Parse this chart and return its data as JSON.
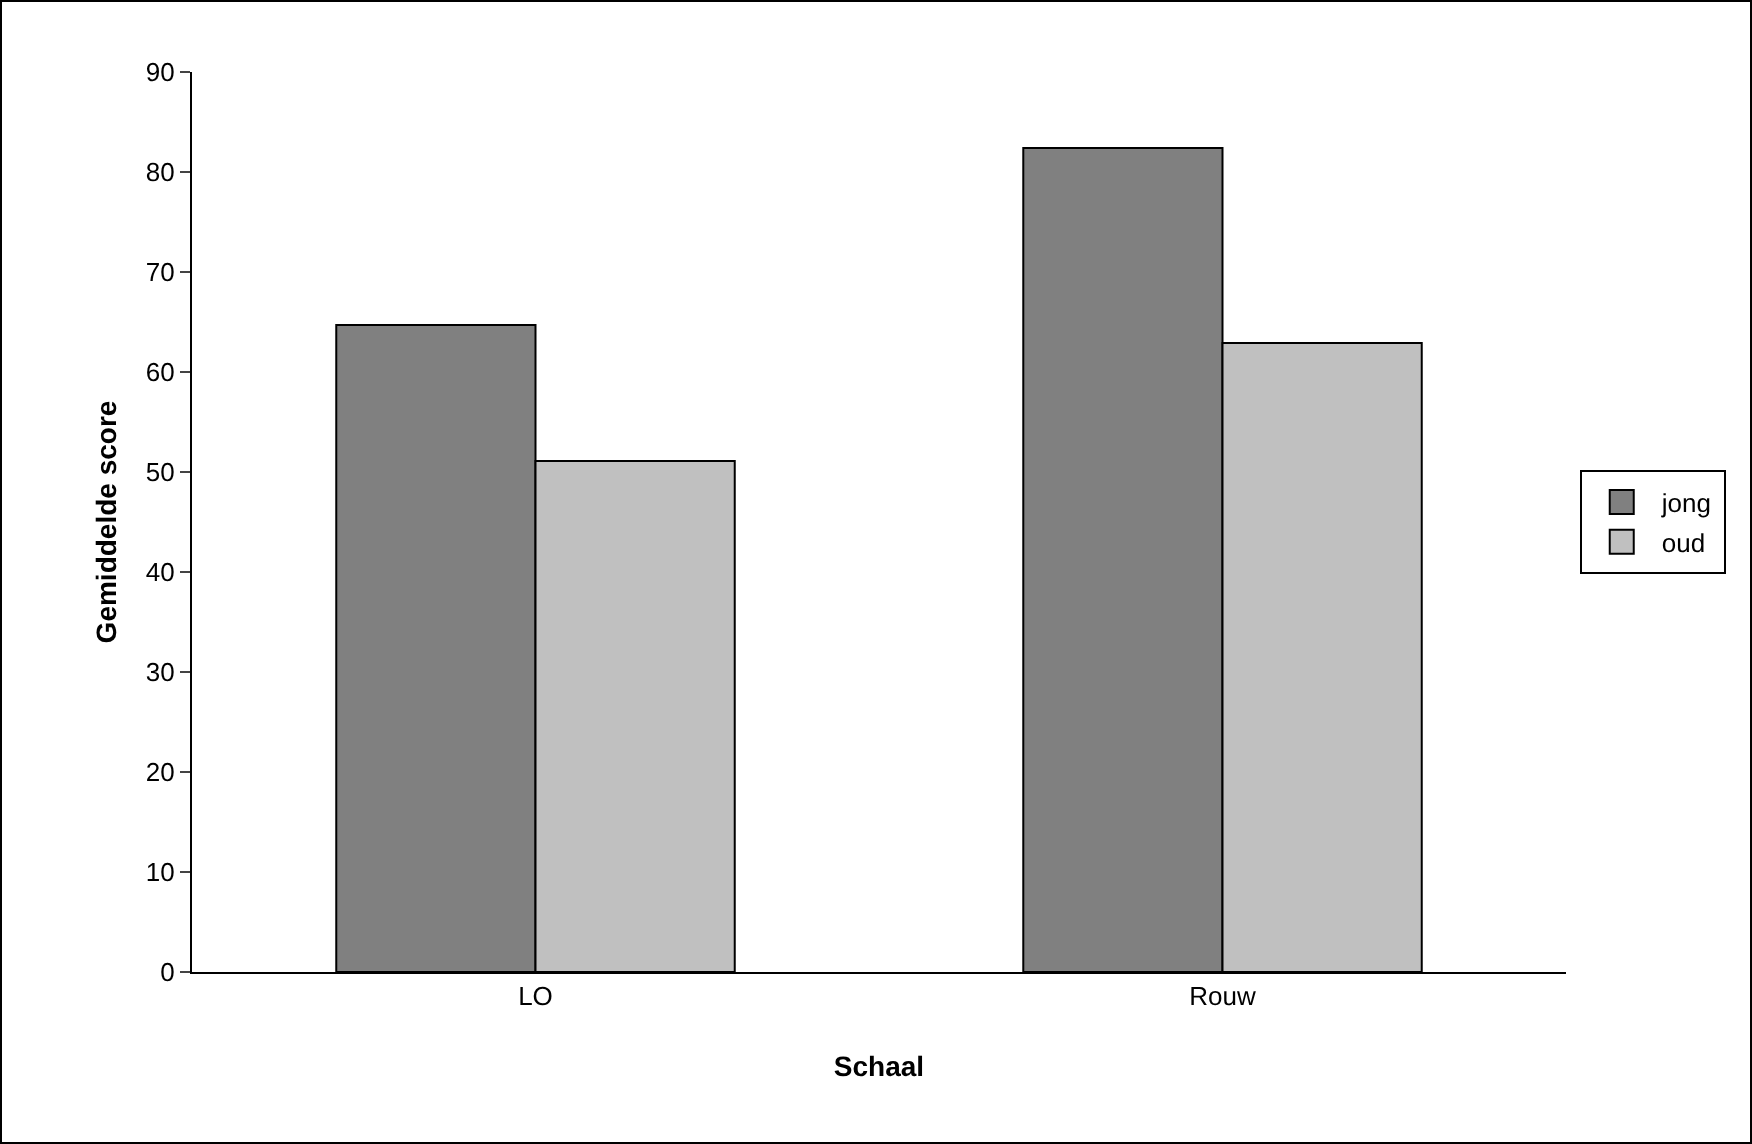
{
  "chart_data": {
    "type": "bar",
    "xlabel": "Schaal",
    "ylabel": "Gemiddelde score",
    "categories": [
      "LO",
      "Rouw"
    ],
    "series": [
      {
        "name": "jong",
        "color": "#808080",
        "values": [
          64.7,
          82.4
        ]
      },
      {
        "name": "oud",
        "color": "#c0c0c0",
        "values": [
          51.1,
          62.9
        ]
      }
    ],
    "ylim": [
      0,
      90
    ],
    "yticks": [
      0,
      10,
      20,
      30,
      40,
      50,
      60,
      70,
      80,
      90
    ],
    "grid": false,
    "legend": "right"
  }
}
